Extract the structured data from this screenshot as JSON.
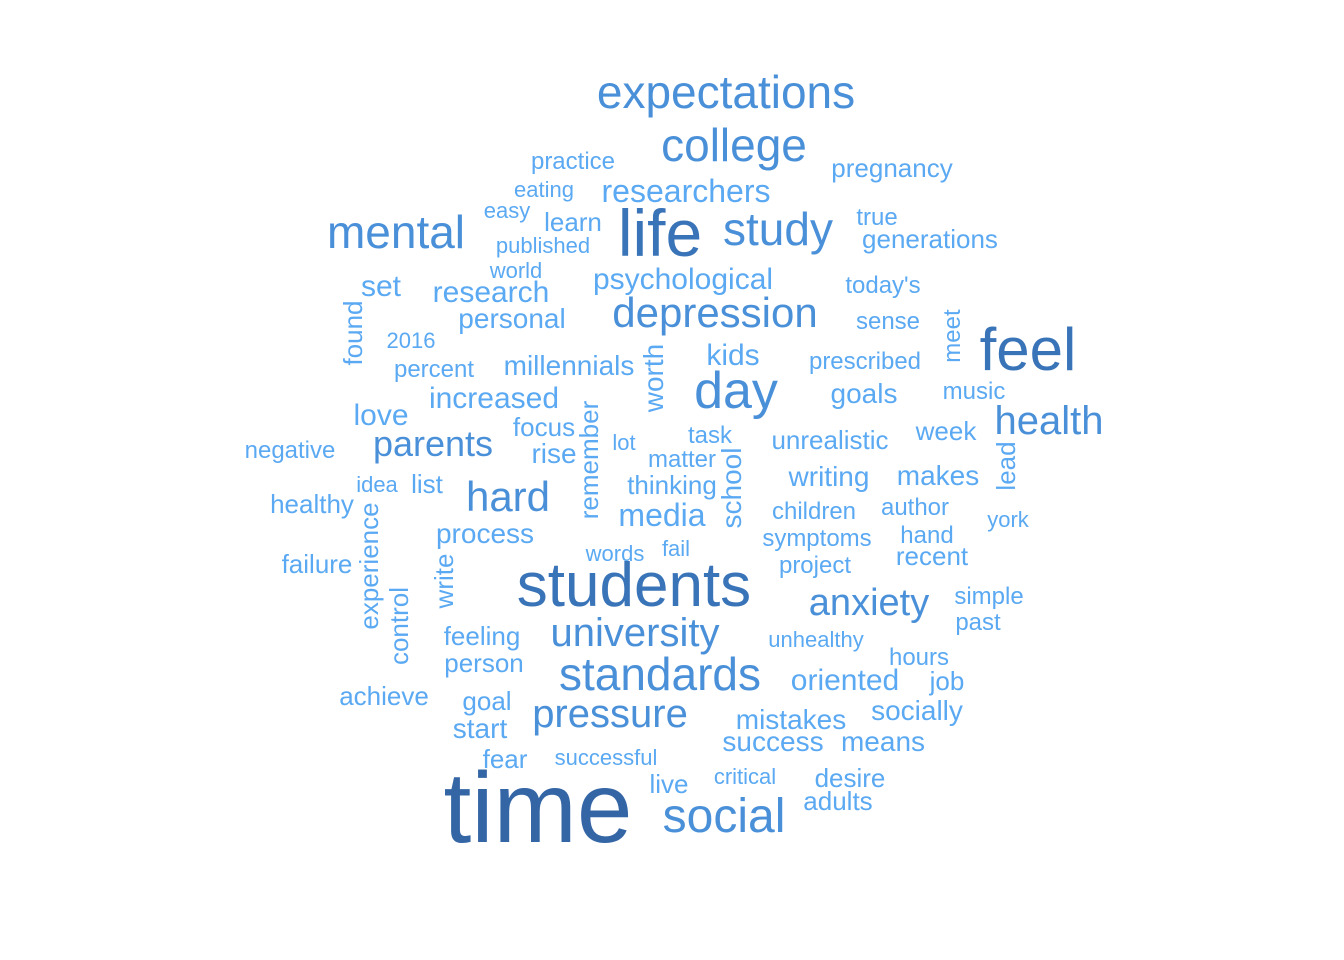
{
  "colors": {
    "small": "#5aa9f2",
    "medium": "#4a90d9",
    "large": "#3a74b8",
    "largest": "#3466a6"
  },
  "words": [
    {
      "text": "time",
      "weight": 100
    },
    {
      "text": "students",
      "weight": 72
    },
    {
      "text": "life",
      "weight": 78
    },
    {
      "text": "feel",
      "weight": 68
    },
    {
      "text": "day",
      "weight": 58
    },
    {
      "text": "social",
      "weight": 52
    },
    {
      "text": "standards",
      "weight": 52
    },
    {
      "text": "college",
      "weight": 52
    },
    {
      "text": "expectations",
      "weight": 50
    },
    {
      "text": "mental",
      "weight": 50
    },
    {
      "text": "study",
      "weight": 52
    },
    {
      "text": "depression",
      "weight": 46
    },
    {
      "text": "hard",
      "weight": 46
    },
    {
      "text": "university",
      "weight": 44
    },
    {
      "text": "pressure",
      "weight": 44
    },
    {
      "text": "health",
      "weight": 44
    },
    {
      "text": "anxiety",
      "weight": 40
    },
    {
      "text": "parents",
      "weight": 38
    },
    {
      "text": "researchers",
      "weight": 34
    },
    {
      "text": "media",
      "weight": 34
    },
    {
      "text": "psychological",
      "weight": 32
    },
    {
      "text": "increased",
      "weight": 32
    },
    {
      "text": "research",
      "weight": 32
    },
    {
      "text": "oriented",
      "weight": 32
    },
    {
      "text": "love",
      "weight": 32
    },
    {
      "text": "set",
      "weight": 32
    },
    {
      "text": "kids",
      "weight": 32
    },
    {
      "text": "millennials",
      "weight": 30
    },
    {
      "text": "personal",
      "weight": 30
    },
    {
      "text": "process",
      "weight": 30
    },
    {
      "text": "writing",
      "weight": 30
    },
    {
      "text": "makes",
      "weight": 30
    },
    {
      "text": "start",
      "weight": 30
    },
    {
      "text": "goals",
      "weight": 30
    },
    {
      "text": "socially",
      "weight": 28
    },
    {
      "text": "success",
      "weight": 28
    },
    {
      "text": "means",
      "weight": 28
    },
    {
      "text": "mistakes",
      "weight": 28
    },
    {
      "text": "rise",
      "weight": 28
    },
    {
      "text": "unrealistic",
      "weight": 28
    },
    {
      "text": "healthy",
      "weight": 28
    },
    {
      "text": "failure",
      "weight": 28
    },
    {
      "text": "achieve",
      "weight": 28
    },
    {
      "text": "fear",
      "weight": 28
    },
    {
      "text": "live",
      "weight": 28
    },
    {
      "text": "recent",
      "weight": 26
    },
    {
      "text": "focus",
      "weight": 26
    },
    {
      "text": "week",
      "weight": 26
    },
    {
      "text": "thinking",
      "weight": 26
    },
    {
      "text": "generations",
      "weight": 26
    },
    {
      "text": "person",
      "weight": 26
    },
    {
      "text": "feeling",
      "weight": 26
    },
    {
      "text": "goal",
      "weight": 26
    },
    {
      "text": "job",
      "weight": 26
    },
    {
      "text": "desire",
      "weight": 26
    },
    {
      "text": "adults",
      "weight": 26
    },
    {
      "text": "list",
      "weight": 26
    },
    {
      "text": "matter",
      "weight": 24
    },
    {
      "text": "prescribed",
      "weight": 24
    },
    {
      "text": "percent",
      "weight": 24
    },
    {
      "text": "sense",
      "weight": 24
    },
    {
      "text": "today's",
      "weight": 24
    },
    {
      "text": "author",
      "weight": 24
    },
    {
      "text": "children",
      "weight": 24
    },
    {
      "text": "symptoms",
      "weight": 24
    },
    {
      "text": "hand",
      "weight": 24
    },
    {
      "text": "project",
      "weight": 24
    },
    {
      "text": "hours",
      "weight": 24
    },
    {
      "text": "past",
      "weight": 24
    },
    {
      "text": "simple",
      "weight": 24
    },
    {
      "text": "pregnancy",
      "weight": 26
    },
    {
      "text": "practice",
      "weight": 24
    },
    {
      "text": "learn",
      "weight": 26
    },
    {
      "text": "task",
      "weight": 24
    },
    {
      "text": "true",
      "weight": 24
    },
    {
      "text": "music",
      "weight": 24
    },
    {
      "text": "negative",
      "weight": 24
    },
    {
      "text": "unhealthy",
      "weight": 22
    },
    {
      "text": "critical",
      "weight": 22
    },
    {
      "text": "successful",
      "weight": 22
    },
    {
      "text": "eating",
      "weight": 22
    },
    {
      "text": "easy",
      "weight": 22
    },
    {
      "text": "published",
      "weight": 22
    },
    {
      "text": "world",
      "weight": 22
    },
    {
      "text": "2016",
      "weight": 22
    },
    {
      "text": "idea",
      "weight": 22
    },
    {
      "text": "lot",
      "weight": 22
    },
    {
      "text": "words",
      "weight": 22
    },
    {
      "text": "fail",
      "weight": 22
    },
    {
      "text": "york",
      "weight": 22
    },
    {
      "text": "found",
      "weight": 26
    },
    {
      "text": "worth",
      "weight": 28
    },
    {
      "text": "remember",
      "weight": 26
    },
    {
      "text": "school",
      "weight": 28
    },
    {
      "text": "experience",
      "weight": 26
    },
    {
      "text": "control",
      "weight": 26
    },
    {
      "text": "write",
      "weight": 26
    },
    {
      "text": "lead",
      "weight": 26
    },
    {
      "text": "meet",
      "weight": 24
    }
  ]
}
